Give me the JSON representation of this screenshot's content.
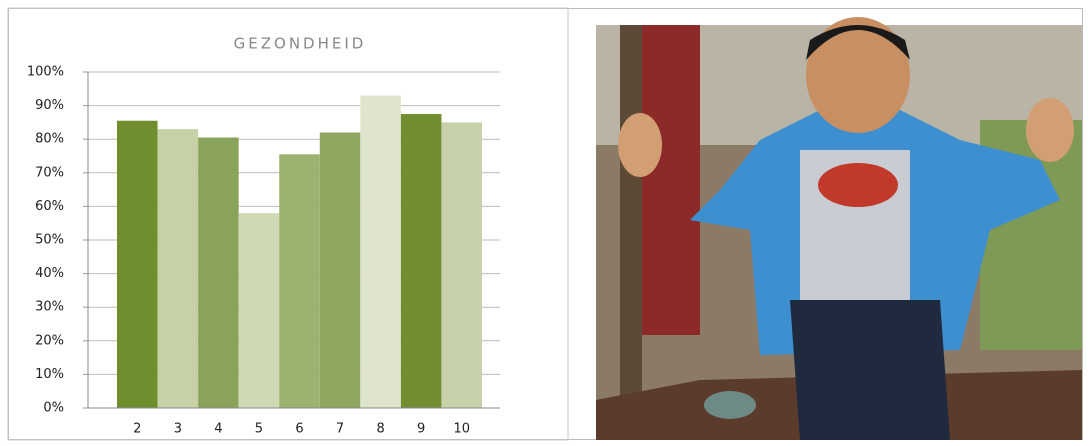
{
  "chart_data": {
    "type": "bar",
    "title": "GEZONDHEID",
    "categories": [
      "2",
      "3",
      "4",
      "5",
      "6",
      "7",
      "8",
      "9",
      "10"
    ],
    "values": [
      85.5,
      83,
      80.5,
      58,
      75.5,
      82,
      93,
      87.5,
      85
    ],
    "colors": [
      "#6f8f2e",
      "#c7d1a8",
      "#8aa35a",
      "#d0d9b6",
      "#9cb271",
      "#8fa660",
      "#dfe5cc",
      "#718f31",
      "#c8d2aa"
    ],
    "ylim": [
      0,
      100
    ],
    "yticks": [
      {
        "value": 0,
        "label": "0%"
      },
      {
        "value": 10,
        "label": "10%"
      },
      {
        "value": 20,
        "label": "20%"
      },
      {
        "value": 30,
        "label": "30%"
      },
      {
        "value": 40,
        "label": "40%"
      },
      {
        "value": 50,
        "label": "50%"
      },
      {
        "value": 60,
        "label": "60%"
      },
      {
        "value": 70,
        "label": "70%"
      },
      {
        "value": 80,
        "label": "80%"
      },
      {
        "value": 90,
        "label": "90%"
      },
      {
        "value": 100,
        "label": "100%"
      }
    ],
    "grid": true
  }
}
